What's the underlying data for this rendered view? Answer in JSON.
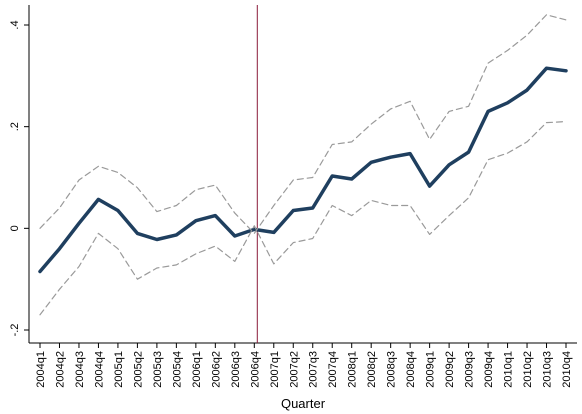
{
  "chart_data": {
    "type": "line",
    "xlabel": "Quarter",
    "ylabel": "",
    "ylim": [
      -0.2,
      0.4
    ],
    "yticks": [
      -0.2,
      0,
      0.2,
      0.4
    ],
    "ytick_labels": [
      "-.2",
      "0",
      ".2",
      ".4"
    ],
    "categories": [
      "2004q1",
      "2004q2",
      "2004q3",
      "2004q4",
      "2005q1",
      "2005q2",
      "2005q3",
      "2005q4",
      "2006q1",
      "2006q2",
      "2006q3",
      "2006q4",
      "2007q1",
      "2007q2",
      "2007q3",
      "2007q4",
      "2008q1",
      "2008q2",
      "2008q3",
      "2008q4",
      "2009q1",
      "2009q2",
      "2009q3",
      "2009q4",
      "2010q1",
      "2010q2",
      "2010q3",
      "2010q4"
    ],
    "reference_line": {
      "category": "2006q4"
    },
    "series": [
      {
        "role": "estimate",
        "color": "#1f3f5f",
        "style": "solid",
        "values": [
          -0.085,
          -0.04,
          0.01,
          0.057,
          0.035,
          -0.01,
          -0.022,
          -0.013,
          0.015,
          0.025,
          -0.015,
          -0.002,
          -0.008,
          0.035,
          0.04,
          0.103,
          0.097,
          0.13,
          0.14,
          0.147,
          0.083,
          0.125,
          0.15,
          0.23,
          0.247,
          0.272,
          0.315,
          0.31
        ]
      },
      {
        "role": "upper-ci",
        "color": "#9a9a9a",
        "style": "dashed",
        "values": [
          0.0,
          0.04,
          0.095,
          0.122,
          0.11,
          0.08,
          0.033,
          0.045,
          0.076,
          0.085,
          0.03,
          -0.01,
          0.045,
          0.095,
          0.1,
          0.165,
          0.17,
          0.205,
          0.235,
          0.25,
          0.175,
          0.23,
          0.24,
          0.325,
          0.35,
          0.38,
          0.42,
          0.41
        ]
      },
      {
        "role": "lower-ci",
        "color": "#9a9a9a",
        "style": "dashed",
        "values": [
          -0.17,
          -0.12,
          -0.075,
          -0.01,
          -0.04,
          -0.1,
          -0.078,
          -0.072,
          -0.05,
          -0.035,
          -0.065,
          0.005,
          -0.07,
          -0.028,
          -0.02,
          0.045,
          0.025,
          0.055,
          0.045,
          0.045,
          -0.012,
          0.025,
          0.06,
          0.135,
          0.148,
          0.17,
          0.208,
          0.21
        ]
      }
    ]
  }
}
